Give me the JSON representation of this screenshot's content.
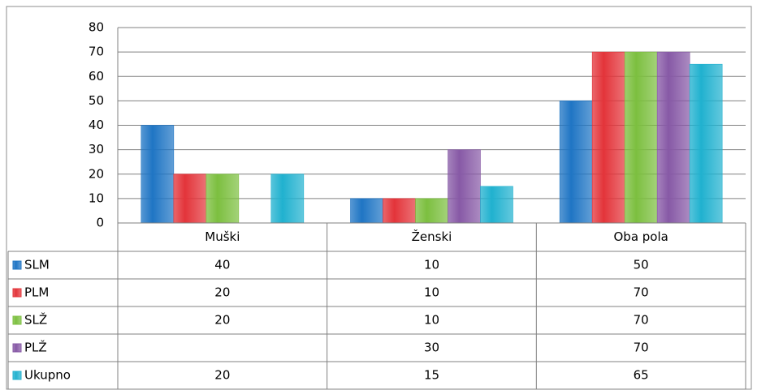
{
  "chart_data": {
    "type": "bar",
    "categories": [
      "Muški",
      "Ženski",
      "Oba pola"
    ],
    "series": [
      {
        "name": "SLM",
        "color": "#1f75c4",
        "values": [
          40,
          10,
          50
        ]
      },
      {
        "name": "PLM",
        "color": "#e3343a",
        "values": [
          20,
          10,
          70
        ]
      },
      {
        "name": "SLŽ",
        "color": "#7cbf3f",
        "values": [
          20,
          10,
          70
        ]
      },
      {
        "name": "PLŽ",
        "color": "#8759a6",
        "values": [
          null,
          30,
          70
        ]
      },
      {
        "name": "Ukupno",
        "color": "#20b1cf",
        "values": [
          20,
          15,
          65
        ]
      }
    ],
    "ylim": [
      0,
      80
    ],
    "yticks": [
      0,
      10,
      20,
      30,
      40,
      50,
      60,
      70,
      80
    ],
    "grid": true,
    "data_table": true
  }
}
